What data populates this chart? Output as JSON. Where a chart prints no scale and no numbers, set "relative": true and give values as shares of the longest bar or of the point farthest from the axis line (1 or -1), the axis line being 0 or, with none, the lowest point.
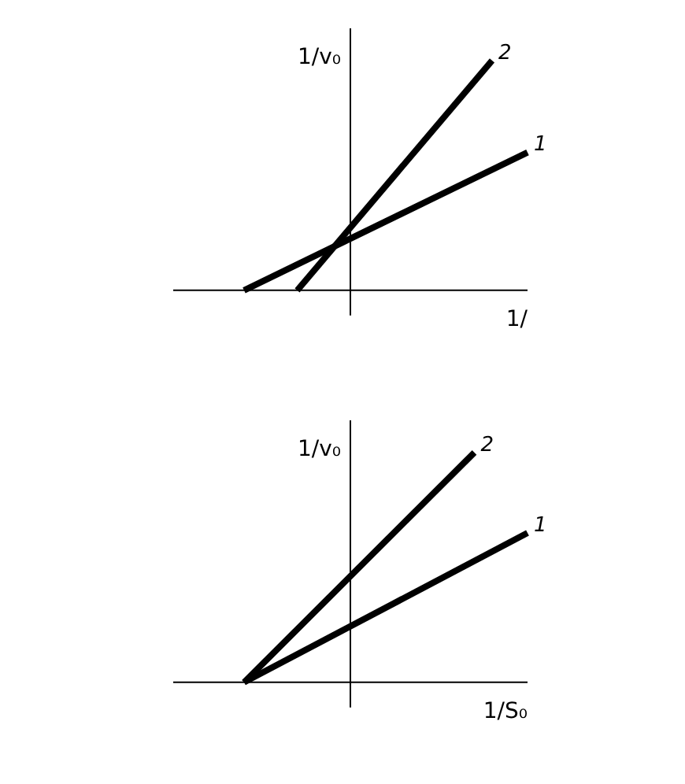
{
  "chart_data": [
    {
      "type": "line",
      "relative": true,
      "ylabel": "1/v₀",
      "xlabel": "1/",
      "marker": "none",
      "legend": false,
      "categories": [
        null,
        null,
        null,
        null,
        null,
        null,
        null,
        null,
        null,
        null,
        null,
        null,
        null,
        null,
        null,
        null,
        null,
        null,
        null,
        null,
        null
      ],
      "series": [
        {
          "name": "1",
          "color": "#000000",
          "values": [
            null,
            null,
            null,
            null,
            0,
            null,
            null,
            null,
            null,
            null,
            null,
            null,
            null,
            null,
            null,
            null,
            null,
            null,
            null,
            null,
            0.6
          ]
        },
        {
          "name": "2",
          "color": "#000000",
          "values": [
            null,
            null,
            null,
            null,
            null,
            null,
            null,
            0,
            null,
            null,
            null,
            null,
            null,
            null,
            null,
            null,
            null,
            null,
            1,
            null,
            null
          ]
        }
      ]
    },
    {
      "type": "line",
      "relative": true,
      "ylabel": "1/v₀",
      "xlabel": "1/S₀",
      "marker": "none",
      "legend": false,
      "categories": [
        null,
        null,
        null,
        null,
        null,
        null,
        null,
        null,
        null,
        null,
        null,
        null,
        null,
        null,
        null,
        null,
        null,
        null,
        null,
        null,
        null
      ],
      "series": [
        {
          "name": "1",
          "color": "#000000",
          "values": [
            null,
            null,
            null,
            null,
            0,
            null,
            null,
            null,
            null,
            null,
            null,
            null,
            null,
            null,
            null,
            null,
            null,
            null,
            null,
            null,
            0.65
          ]
        },
        {
          "name": "2",
          "color": "#000000",
          "values": [
            null,
            null,
            null,
            null,
            0,
            null,
            null,
            null,
            null,
            null,
            null,
            null,
            null,
            null,
            null,
            null,
            null,
            1,
            null,
            null,
            null
          ]
        }
      ]
    }
  ]
}
